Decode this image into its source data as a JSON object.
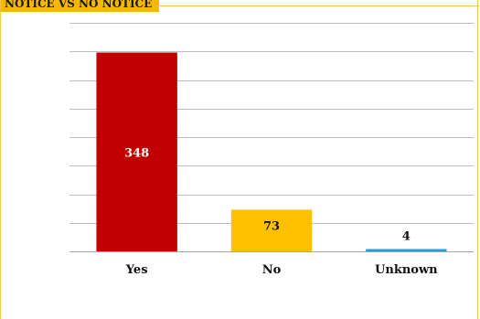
{
  "title": "NOTICE VS NO NOTICE",
  "chart_data": {
    "type": "bar",
    "categories": [
      "Yes",
      "No",
      "Unknown"
    ],
    "values": [
      348,
      73,
      4
    ],
    "colors": [
      "#c00000",
      "#ffc000",
      "#1aa3d9"
    ],
    "data_label_colors": [
      "#ffffff",
      "#111111",
      "#111111"
    ],
    "title": "NOTICE VS NO NOTICE",
    "xlabel": "",
    "ylabel": "",
    "ylim": [
      0,
      400
    ],
    "grid": true,
    "legend": "none"
  }
}
